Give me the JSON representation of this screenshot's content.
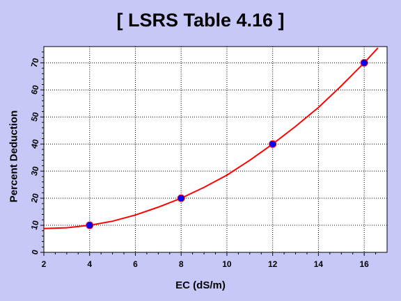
{
  "chart_data": {
    "type": "scatter",
    "title": "[ LSRS Table 4.16 ]",
    "xlabel": "EC (dS/m)",
    "ylabel": "Percent Deduction",
    "xlim": [
      2,
      17
    ],
    "ylim": [
      0,
      76
    ],
    "xticks": [
      2,
      4,
      6,
      8,
      10,
      12,
      14,
      16
    ],
    "yticks": [
      0,
      10,
      20,
      30,
      40,
      50,
      60,
      70
    ],
    "grid": true,
    "background_color": "#c8c8f8",
    "plot_background_color": "#ffffff",
    "curve_color": "#ff0000",
    "point_color": "#0000ff",
    "series": [
      {
        "type": "scatter",
        "x": [
          4,
          8,
          12,
          16
        ],
        "y": [
          10,
          20,
          40,
          70
        ]
      },
      {
        "type": "line",
        "x": [
          2,
          3,
          4,
          5,
          6,
          7,
          8,
          9,
          10,
          11,
          12,
          13,
          14,
          15,
          16,
          16.6
        ],
        "y": [
          8.8,
          9.1,
          10,
          11.5,
          13.8,
          16.7,
          20,
          24,
          28.5,
          34,
          40,
          46.5,
          53.5,
          61.5,
          70,
          75.5
        ]
      }
    ]
  }
}
